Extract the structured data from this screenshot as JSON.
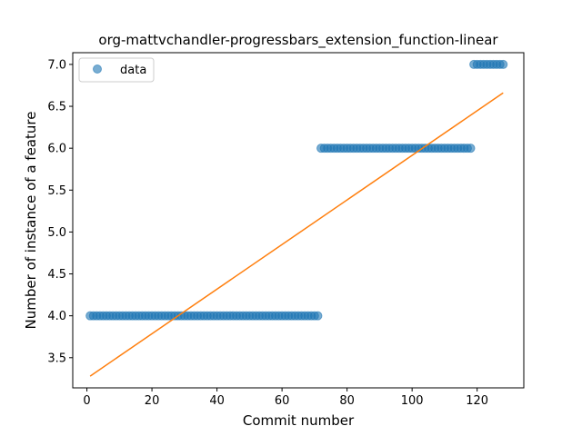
{
  "chart_data": {
    "type": "scatter",
    "title": "org-mattvchandler-progressbars_extension_function-linear",
    "xlabel": "Commit number",
    "ylabel": "Number of instance of a feature",
    "xlim": [
      -4.35,
      134.35
    ],
    "ylim": [
      3.14,
      7.14
    ],
    "x_ticks": [
      0,
      20,
      40,
      60,
      80,
      100,
      120
    ],
    "x_tick_labels": [
      "0",
      "20",
      "40",
      "60",
      "80",
      "100",
      "120"
    ],
    "y_ticks": [
      3.5,
      4.0,
      4.5,
      5.0,
      5.5,
      6.0,
      6.5,
      7.0
    ],
    "y_tick_labels": [
      "3.5",
      "4.0",
      "4.5",
      "5.0",
      "5.5",
      "6.0",
      "6.5",
      "7.0"
    ],
    "grid": false,
    "legend": {
      "position": "top-left",
      "entries": [
        "data"
      ]
    },
    "series": [
      {
        "name": "data",
        "kind": "scatter",
        "color": "#1f77b4",
        "segments": [
          {
            "x_start": 1,
            "x_end": 71,
            "y": 4.0
          },
          {
            "x_start": 72,
            "x_end": 118,
            "y": 6.0
          },
          {
            "x_start": 119,
            "x_end": 128,
            "y": 7.0
          }
        ]
      },
      {
        "kind": "line",
        "color": "#ff7f0e",
        "x": [
          1,
          128
        ],
        "y": [
          3.28,
          6.66
        ]
      }
    ]
  }
}
